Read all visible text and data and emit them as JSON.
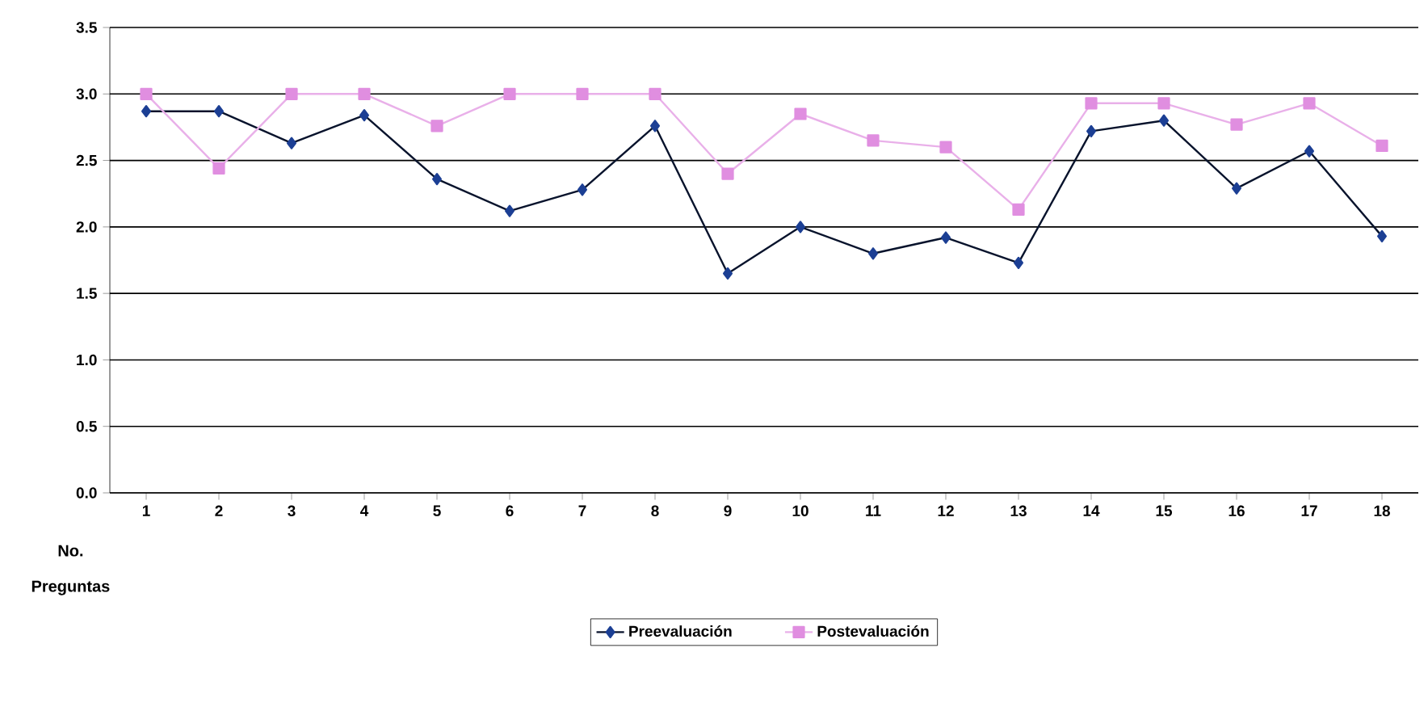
{
  "chart_data": {
    "type": "line",
    "xlabel": "No. Preguntas",
    "categories": [
      "1",
      "2",
      "3",
      "4",
      "5",
      "6",
      "7",
      "8",
      "9",
      "10",
      "11",
      "12",
      "13",
      "14",
      "15",
      "16",
      "17",
      "18"
    ],
    "series": [
      {
        "name": "Preevaluación",
        "color": "#1c3f94",
        "marker": "diamond",
        "values": [
          2.87,
          2.87,
          2.63,
          2.84,
          2.36,
          2.12,
          2.28,
          2.76,
          1.65,
          2.0,
          1.8,
          1.92,
          1.73,
          2.72,
          2.8,
          2.29,
          2.57,
          1.93
        ]
      },
      {
        "name": "Postevaluación",
        "color": "#e08ee0",
        "marker": "square",
        "values": [
          3.0,
          2.44,
          3.0,
          3.0,
          2.76,
          3.0,
          3.0,
          3.0,
          2.4,
          2.85,
          2.65,
          2.6,
          2.13,
          2.93,
          2.93,
          2.77,
          2.93,
          2.61
        ]
      }
    ],
    "ylim": [
      0,
      3.5
    ],
    "yticks": [
      {
        "value": 0,
        "label": "0.0"
      },
      0.5,
      {
        "value": 1,
        "label": "1.0"
      },
      1.5,
      {
        "value": 2,
        "label": "2.0"
      },
      2.5,
      {
        "value": 3,
        "label": "3.0"
      },
      3.5
    ],
    "grid": "y",
    "legend": "bottom",
    "line_style": "solid"
  }
}
